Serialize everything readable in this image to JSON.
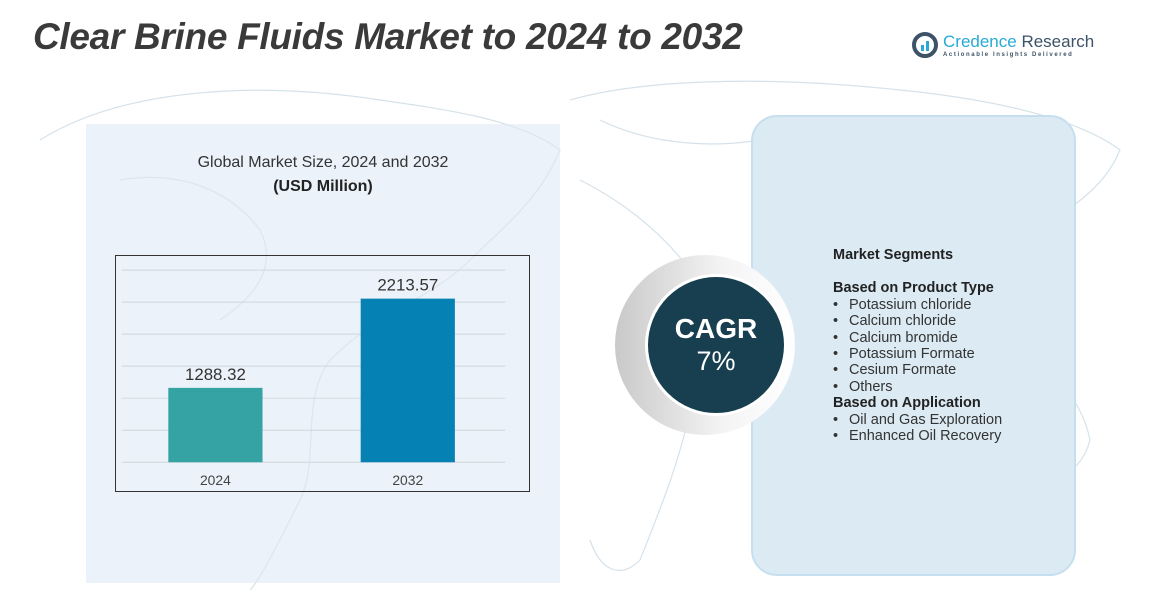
{
  "title": "Clear Brine Fluids Market to 2024 to 2032",
  "logo": {
    "name_part1": "Credence",
    "name_part2": " Research",
    "tagline": "Actionable Insights Delivered"
  },
  "chart_header": {
    "subtitle": "Global Market Size,  2024 and 2032",
    "unit": "(USD Million)"
  },
  "chart_data": {
    "type": "bar",
    "categories": [
      "2024",
      "2032"
    ],
    "values": [
      1288.32,
      2213.57
    ],
    "data_labels": [
      "1288.32",
      "2213.57"
    ],
    "colors": [
      "#35a3a3",
      "#0681b3"
    ],
    "title": "Global Market Size,  2024 and 2032",
    "ylabel": "(USD Million)",
    "grid": true
  },
  "cagr": {
    "label": "CAGR",
    "value": "7%"
  },
  "segments": {
    "heading": "Market Segments",
    "groups": [
      {
        "title": "Based on Product Type",
        "items": [
          "Potassium chloride",
          "Calcium chloride",
          "Calcium bromide",
          "Potassium Formate",
          "Cesium Formate",
          "Others"
        ]
      },
      {
        "title": "Based on Application",
        "items": [
          "Oil and Gas Exploration",
          "Enhanced Oil Recovery"
        ]
      }
    ]
  },
  "colors": {
    "cagr_circle": "#173f50",
    "panel": "#dceaf3",
    "accent": "#2aa9d6"
  }
}
